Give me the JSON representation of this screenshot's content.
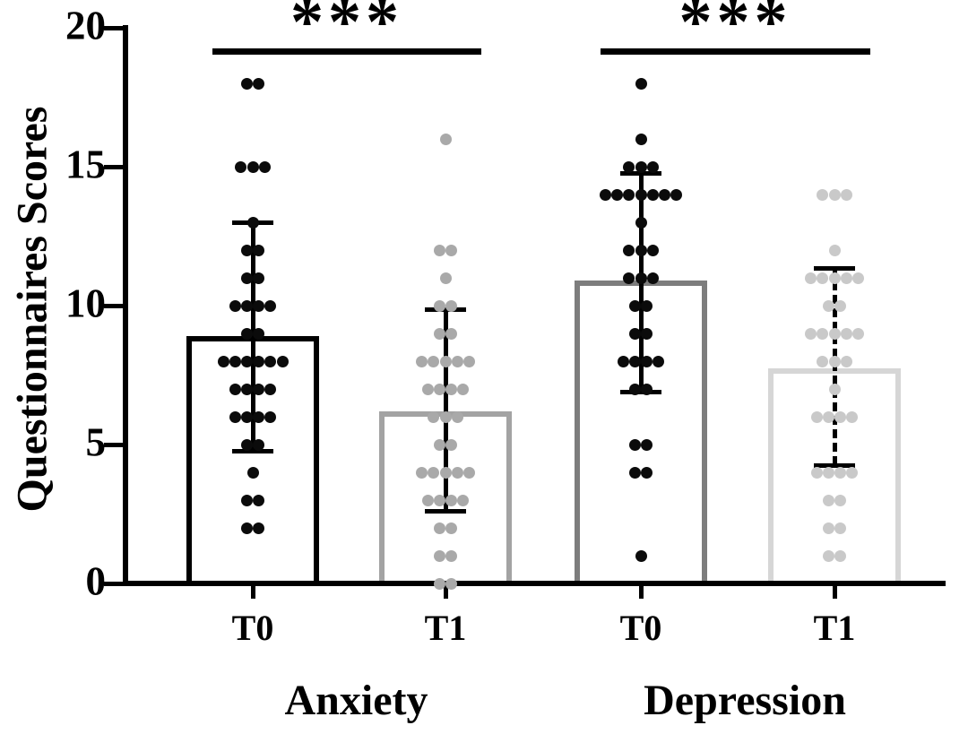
{
  "figure": {
    "background": "#ffffff",
    "text_color": "#000000"
  },
  "chart_data": {
    "type": "bar",
    "title": "",
    "ylabel": "Questionnaires Scores",
    "xlabel": "",
    "ylim": [
      0,
      20
    ],
    "yticks": [
      "0",
      "5",
      "10",
      "15",
      "20"
    ],
    "ytick_values": [
      0,
      5,
      10,
      15,
      20
    ],
    "grid": false,
    "legend": "none",
    "group_labels": [
      "Anxiety",
      "Depression"
    ],
    "categories": [
      "T0",
      "T1",
      "T0",
      "T1"
    ],
    "error_bar_color": "#000000",
    "columns": [
      {
        "group": "Anxiety",
        "label": "T0",
        "mean": 8.9,
        "sd_top": 13.0,
        "sd_bottom": 4.75,
        "outline_color": "#000000",
        "dot_color": "#0b0b0b",
        "error_style": "solid",
        "dots": [
          [
            18,
            2
          ],
          [
            15,
            3
          ],
          [
            13,
            1
          ],
          [
            12,
            2
          ],
          [
            11,
            2
          ],
          [
            10,
            4
          ],
          [
            9,
            2
          ],
          [
            8,
            6
          ],
          [
            7,
            4
          ],
          [
            6,
            4
          ],
          [
            5,
            2
          ],
          [
            4,
            1
          ],
          [
            3,
            2
          ],
          [
            2,
            2
          ]
        ]
      },
      {
        "group": "Anxiety",
        "label": "T1",
        "mean": 6.2,
        "sd_top": 9.85,
        "sd_bottom": 2.6,
        "outline_color": "#a3a3a3",
        "dot_color": "#a9a9a9",
        "error_style": "solid",
        "dots": [
          [
            16,
            1
          ],
          [
            12,
            2
          ],
          [
            11,
            1
          ],
          [
            10,
            2
          ],
          [
            9,
            2
          ],
          [
            8,
            5
          ],
          [
            7,
            4
          ],
          [
            6,
            3
          ],
          [
            5,
            2
          ],
          [
            4,
            5
          ],
          [
            3,
            4
          ],
          [
            2,
            2
          ],
          [
            1,
            2
          ],
          [
            0,
            2
          ]
        ]
      },
      {
        "group": "Depression",
        "label": "T0",
        "mean": 10.9,
        "sd_top": 14.75,
        "sd_bottom": 6.9,
        "outline_color": "#7d7d7d",
        "dot_color": "#0b0b0b",
        "error_style": "solid",
        "dots": [
          [
            18,
            1
          ],
          [
            16,
            1
          ],
          [
            15,
            3
          ],
          [
            14,
            7
          ],
          [
            13,
            1
          ],
          [
            12,
            3
          ],
          [
            11,
            3
          ],
          [
            10,
            2
          ],
          [
            9,
            2
          ],
          [
            8,
            4
          ],
          [
            7,
            2
          ],
          [
            5,
            2
          ],
          [
            4,
            2
          ],
          [
            1,
            1
          ]
        ]
      },
      {
        "group": "Depression",
        "label": "T1",
        "mean": 7.75,
        "sd_top": 11.35,
        "sd_bottom": 4.25,
        "outline_color": "#d6d6d6",
        "dot_color": "#c9c9c9",
        "error_style": "dashed",
        "dots": [
          [
            14,
            3
          ],
          [
            12,
            1
          ],
          [
            11,
            5
          ],
          [
            10,
            2
          ],
          [
            9,
            5
          ],
          [
            8,
            3
          ],
          [
            7,
            1
          ],
          [
            6,
            4
          ],
          [
            4,
            4
          ],
          [
            3,
            2
          ],
          [
            2,
            2
          ],
          [
            1,
            2
          ]
        ]
      }
    ],
    "significance": [
      {
        "label": "***",
        "between_columns": [
          0,
          1
        ]
      },
      {
        "label": "***",
        "between_columns": [
          2,
          3
        ]
      }
    ]
  }
}
